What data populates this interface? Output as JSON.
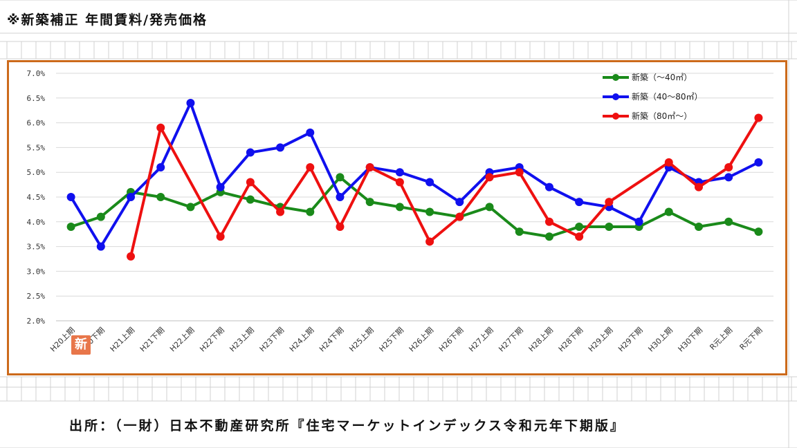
{
  "page": {
    "title": "※新築補正 年間賃料/発売価格",
    "source": "出所：（一財）日本不動産研究所『住宅マーケットインデックス令和元年下期版』",
    "stamp_char": "新"
  },
  "colors": {
    "frame": "#cc6a1b",
    "series": [
      "#1a8a1a",
      "#1010ee",
      "#ee1010"
    ]
  },
  "chart_data": {
    "type": "line",
    "title": "",
    "xlabel": "",
    "ylabel": "",
    "ylim": [
      2.0,
      7.0
    ],
    "ytick_labels": [
      "2.0%",
      "2.5%",
      "3.0%",
      "3.5%",
      "4.0%",
      "4.5%",
      "5.0%",
      "5.5%",
      "6.0%",
      "6.5%",
      "7.0%"
    ],
    "grid": "horizontal",
    "legend_position": "top-right",
    "categories": [
      "H20上期",
      "H20下期",
      "H21上期",
      "H21下期",
      "H22上期",
      "H22下期",
      "H23上期",
      "H23下期",
      "H24上期",
      "H24下期",
      "H25上期",
      "H25下期",
      "H26上期",
      "H26下期",
      "H27上期",
      "H27下期",
      "H28上期",
      "H28下期",
      "H29上期",
      "H29下期",
      "H30上期",
      "H30下期",
      "R元上期",
      "R元下期"
    ],
    "series": [
      {
        "name": "新築（～40㎡）",
        "values": [
          3.9,
          4.1,
          4.6,
          4.5,
          4.3,
          4.6,
          4.45,
          4.3,
          4.2,
          4.9,
          4.4,
          4.3,
          4.2,
          4.1,
          4.3,
          3.8,
          3.7,
          3.9,
          3.9,
          3.9,
          4.2,
          3.9,
          4.0,
          3.8
        ]
      },
      {
        "name": "新築（40～80㎡）",
        "values": [
          4.5,
          3.5,
          4.5,
          5.1,
          6.4,
          4.7,
          5.4,
          5.5,
          5.8,
          4.5,
          5.1,
          5.0,
          4.8,
          4.4,
          5.0,
          5.1,
          4.7,
          4.4,
          4.3,
          4.0,
          5.1,
          4.8,
          4.9,
          5.2
        ]
      },
      {
        "name": "新築（80㎡～）",
        "values": [
          null,
          null,
          3.3,
          5.9,
          null,
          3.7,
          4.8,
          4.2,
          5.1,
          3.9,
          5.1,
          4.8,
          3.6,
          4.1,
          4.9,
          5.0,
          4.0,
          3.7,
          4.4,
          null,
          5.2,
          4.7,
          5.1,
          6.1
        ]
      }
    ]
  }
}
